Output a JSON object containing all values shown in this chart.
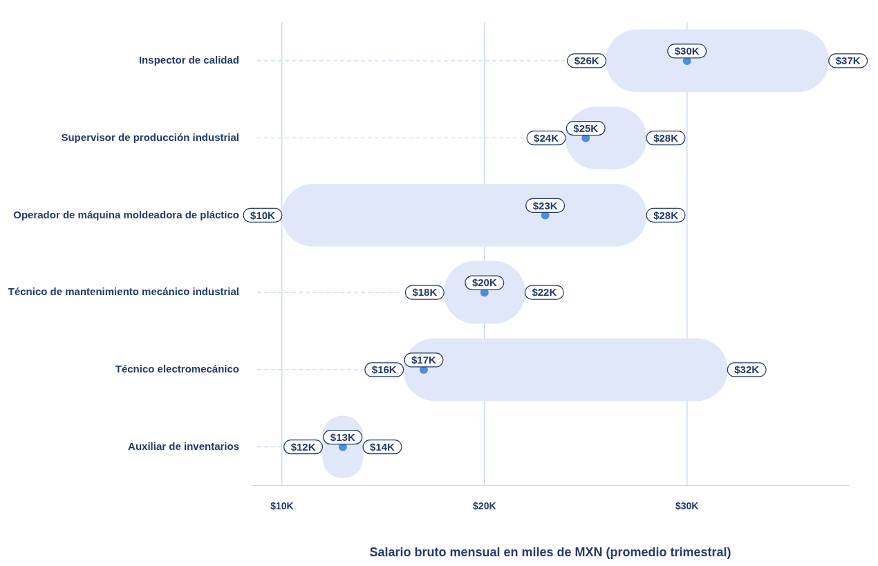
{
  "chart_data": {
    "type": "bar",
    "orientation": "horizontal",
    "xlabel": "Salario bruto mensual en miles de MXN (promedio trimestral)",
    "categories": [
      "Inspector de calidad",
      "Supervisor de producción industrial",
      "Operador de máquina moldeadora de pláctico",
      "Técnico de mantenimiento mecánico industrial",
      "Técnico electromecánico",
      "Auxiliar de inventarios"
    ],
    "xlim": [
      8.5,
      38
    ],
    "xticks": [
      {
        "value": 10,
        "label": "$10K"
      },
      {
        "value": 20,
        "label": "$20K"
      },
      {
        "value": 30,
        "label": "$30K"
      }
    ],
    "grid": true,
    "legend": false,
    "series": [
      {
        "type": "bar",
        "color": "#dfe7f9",
        "base": [
          26,
          24,
          10,
          18,
          16,
          12
        ],
        "values": [
          11,
          4,
          18,
          4,
          16,
          2
        ]
      },
      {
        "type": "scatter",
        "color": "#4a90d9",
        "marker": "circle",
        "x": [
          "Inspector de calidad",
          "Supervisor de producción industrial",
          "Operador de máquina moldeadora de pláctico",
          "Técnico de mantenimiento mecánico industrial",
          "Técnico electromecánico",
          "Auxiliar de inventarios"
        ],
        "values": [
          30,
          25,
          23,
          20,
          17,
          13
        ],
        "value_labels": [
          "$30K",
          "$25K",
          "$23K",
          "$20K",
          "$17K",
          "$13K"
        ]
      }
    ],
    "annotations": [
      {
        "text": "$26K",
        "x": 26,
        "y": "Inspector de calidad"
      },
      {
        "text": "$37K",
        "x": 37,
        "y": "Inspector de calidad"
      },
      {
        "text": "$24K",
        "x": 24,
        "y": "Supervisor de producción industrial"
      },
      {
        "text": "$28K",
        "x": 28,
        "y": "Supervisor de producción industrial"
      },
      {
        "text": "$10K",
        "x": 10,
        "y": "Operador de máquina moldeadora de pláctico"
      },
      {
        "text": "$28K",
        "x": 28,
        "y": "Operador de máquina moldeadora de pláctico"
      },
      {
        "text": "$18K",
        "x": 18,
        "y": "Técnico de mantenimiento mecánico industrial"
      },
      {
        "text": "$22K",
        "x": 22,
        "y": "Técnico de mantenimiento mecánico industrial"
      },
      {
        "text": "$16K",
        "x": 16,
        "y": "Técnico electromecánico"
      },
      {
        "text": "$32K",
        "x": 32,
        "y": "Técnico electromecánico"
      },
      {
        "text": "$12K",
        "x": 12,
        "y": "Auxiliar de inventarios"
      },
      {
        "text": "$14K",
        "x": 14,
        "y": "Auxiliar de inventarios"
      }
    ]
  }
}
